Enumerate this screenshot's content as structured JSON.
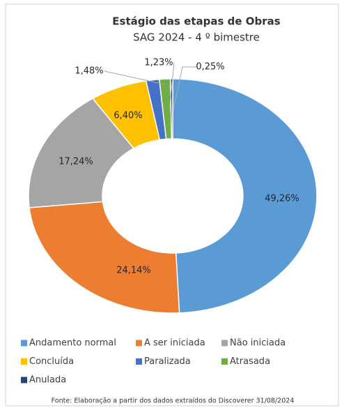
{
  "chart_data": {
    "type": "pie",
    "title": "Estágio das etapas de Obras",
    "subtitle": "SAG 2024 - 4 º bimestre",
    "categories": [
      "Andamento normal",
      "A ser iniciada",
      "Não iniciada",
      "Concluída",
      "Paralizada",
      "Atrasada",
      "Anulada"
    ],
    "values": [
      49.26,
      24.14,
      17.24,
      6.4,
      1.48,
      1.23,
      0.25
    ],
    "value_labels": [
      "49,26%",
      "24,14%",
      "17,24%",
      "6,40%",
      "1,48%",
      "1,23%",
      "0,25%"
    ],
    "colors": [
      "#5b9bd5",
      "#ed7d31",
      "#a5a5a5",
      "#ffc000",
      "#4472c4",
      "#70ad47",
      "#264478"
    ],
    "source": "Fonte: Elaboração a partir dos dados extraídos do Discoverer 31/08/2024"
  }
}
